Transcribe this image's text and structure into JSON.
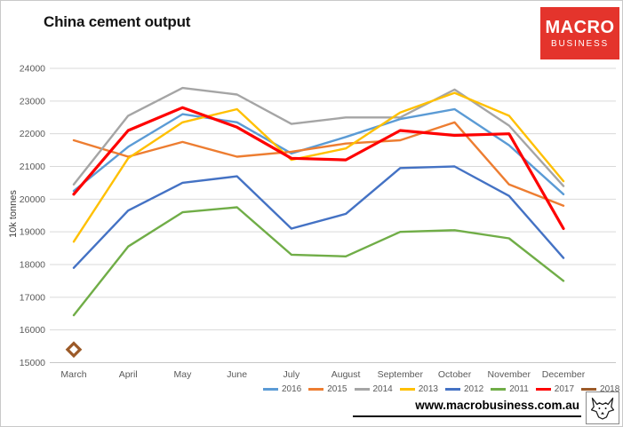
{
  "logo": {
    "line1": "MACRO",
    "line2": "BUSINESS",
    "bg_color": "#e4342c",
    "text_color": "#ffffff"
  },
  "chart_data": {
    "type": "line",
    "title": "China cement output",
    "ylabel": "10k tonnes",
    "ylim": [
      15000,
      24000
    ],
    "ytick_step": 1000,
    "grid": true,
    "grid_color": "#d9d9d9",
    "legend_position": "bottom",
    "categories": [
      "March",
      "April",
      "May",
      "June",
      "July",
      "August",
      "September",
      "October",
      "November",
      "December"
    ],
    "series": [
      {
        "name": "2016",
        "color": "#5b9bd5",
        "values": [
          20250,
          21600,
          22600,
          22350,
          21400,
          21900,
          22450,
          22750,
          21650,
          20150
        ]
      },
      {
        "name": "2015",
        "color": "#ed7d31",
        "values": [
          21800,
          21300,
          21750,
          21300,
          21450,
          21700,
          21800,
          22350,
          20450,
          19800
        ]
      },
      {
        "name": "2014",
        "color": "#a5a5a5",
        "values": [
          20450,
          22550,
          23400,
          23200,
          22300,
          22500,
          22500,
          23350,
          22250,
          20400
        ]
      },
      {
        "name": "2013",
        "color": "#ffc000",
        "values": [
          18700,
          21250,
          22350,
          22750,
          21200,
          21550,
          22650,
          23250,
          22550,
          20550
        ]
      },
      {
        "name": "2012",
        "color": "#4472c4",
        "values": [
          17900,
          19650,
          20500,
          20700,
          19100,
          19550,
          20950,
          21000,
          20100,
          18200
        ]
      },
      {
        "name": "2011",
        "color": "#70ad47",
        "values": [
          16450,
          18550,
          19600,
          19750,
          18300,
          18250,
          19000,
          19050,
          18800,
          17500
        ]
      },
      {
        "name": "2017",
        "color": "#fe0000",
        "width": 3.2,
        "values": [
          20150,
          22100,
          22800,
          22200,
          21250,
          21200,
          22100,
          21950,
          22000,
          19100
        ]
      },
      {
        "name": "2018",
        "color": "#9c5a28",
        "marker": "diamond",
        "values": [
          15400,
          null,
          null,
          null,
          null,
          null,
          null,
          null,
          null,
          null
        ]
      }
    ]
  },
  "footer": {
    "url": "www.macrobusiness.com.au",
    "wolf_icon": "wolf-logo-icon"
  }
}
